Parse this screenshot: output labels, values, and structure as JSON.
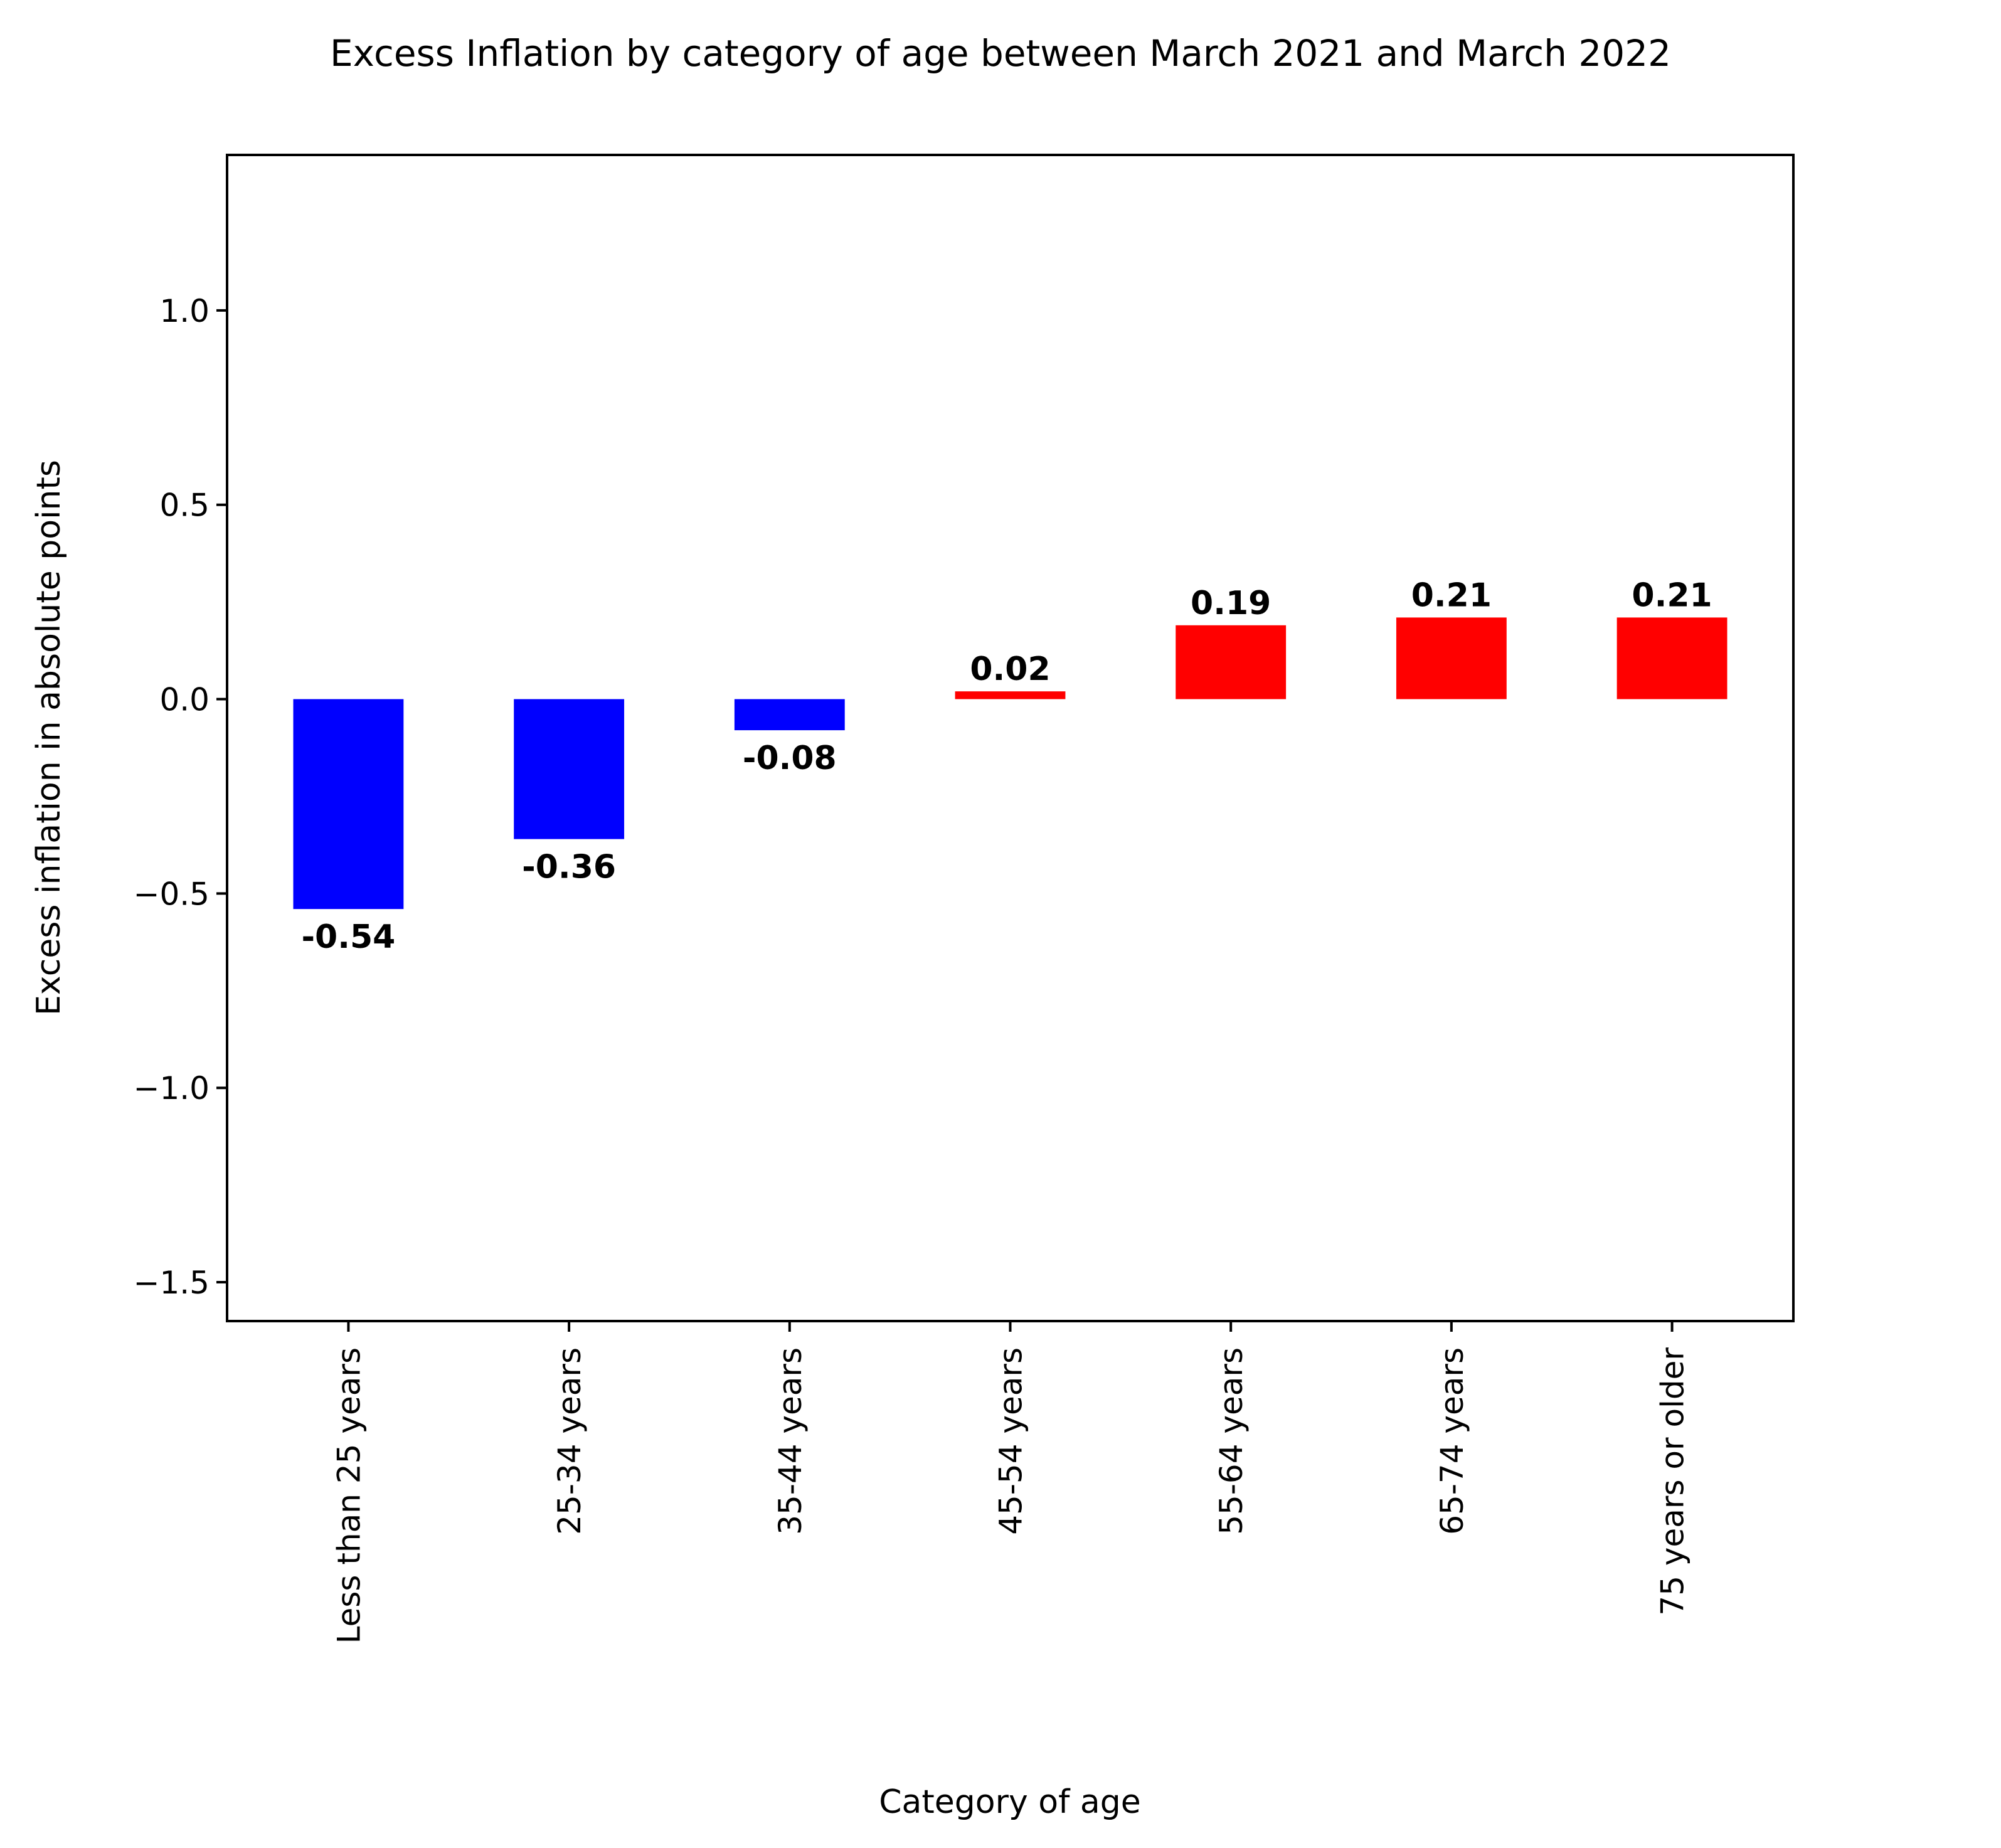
{
  "chart_data": {
    "type": "bar",
    "title": "Excess Inflation by category of age between March 2021 and March 2022",
    "xlabel": "Category of age",
    "ylabel": "Excess inflation in absolute points",
    "categories": [
      "Less than 25 years",
      "25-34 years",
      "35-44 years",
      "45-54 years",
      "55-64 years",
      "65-74 years",
      "75 years or older"
    ],
    "values": [
      -0.54,
      -0.36,
      -0.08,
      0.02,
      0.19,
      0.21,
      0.21
    ],
    "value_labels": [
      "-0.54",
      "-0.36",
      "-0.08",
      "0.02",
      "0.19",
      "0.21",
      "0.21"
    ],
    "ylim": [
      -1.6,
      1.4
    ],
    "yticks": [
      1.0,
      0.5,
      0.0,
      -0.5,
      -1.0,
      -1.5
    ],
    "ytick_labels": [
      "1.0",
      "0.5",
      "0.0",
      "−0.5",
      "−1.0",
      "−1.5"
    ],
    "grid": false,
    "colors": {
      "positive": "#ff0000",
      "negative": "#0000ff"
    }
  }
}
